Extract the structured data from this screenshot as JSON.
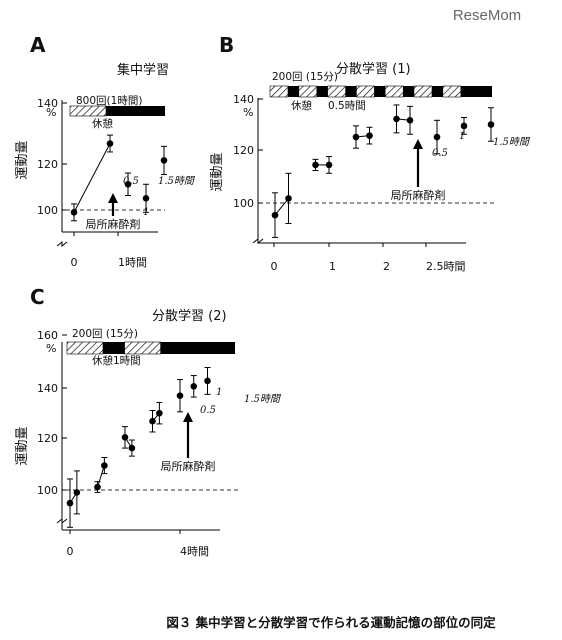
{
  "watermark": "ReseMom",
  "caption": "図３ 集中学習と分散学習で作られる運動記憶の部位の同定",
  "chart_data": [
    {
      "panel": "A",
      "type": "scatter",
      "title": "集中学習",
      "ylabel": "運動量",
      "yunit": "%",
      "yticks": [
        "100",
        "120",
        "140"
      ],
      "ylim": [
        93,
        140
      ],
      "xticks": [
        "0",
        "1時間"
      ],
      "bar_label": "800回(1時間)",
      "rest_label": "休憩",
      "arrow_label": "局所麻酔剤",
      "annotations": [
        "0.5",
        "1",
        "1.5時間"
      ],
      "points": [
        {
          "x": 0,
          "y": 100,
          "err": 3
        },
        {
          "x": 1,
          "y": 124.5,
          "err": 3
        },
        {
          "x": 1.5,
          "y": 110,
          "err": 4
        },
        {
          "x": 2,
          "y": 105,
          "err": 5
        },
        {
          "x": 2.5,
          "y": 118.5,
          "err": 5
        }
      ],
      "segments": [
        [
          0,
          1
        ]
      ],
      "reference_y": 100
    },
    {
      "panel": "B",
      "type": "scatter",
      "title": "分散学習 (1)",
      "ylabel": "運動量",
      "yunit": "%",
      "yticks": [
        "100",
        "120",
        "140"
      ],
      "ylim": [
        90,
        142
      ],
      "xticks": [
        "0",
        "1",
        "2",
        "2.5時間"
      ],
      "bar_label": "200回 (15分)",
      "rest_label": "休憩",
      "sub_label": "0.5時間",
      "arrow_label": "局所麻酔剤",
      "annotations": [
        "0.5",
        "1",
        "1.5時間"
      ],
      "points": [
        {
          "x": 0,
          "y": 100,
          "err": 8
        },
        {
          "x": 0.25,
          "y": 106,
          "err": 9
        },
        {
          "x": 0.75,
          "y": 118,
          "err": 2
        },
        {
          "x": 1,
          "y": 118,
          "err": 3
        },
        {
          "x": 1.5,
          "y": 128,
          "err": 4
        },
        {
          "x": 1.75,
          "y": 128.5,
          "err": 3
        },
        {
          "x": 2.25,
          "y": 134.5,
          "err": 5
        },
        {
          "x": 2.5,
          "y": 134,
          "err": 5
        },
        {
          "x": 3.0,
          "y": 128,
          "err": 6
        },
        {
          "x": 3.5,
          "y": 132,
          "err": 3
        },
        {
          "x": 4.0,
          "y": 132.5,
          "err": 6
        }
      ],
      "segments": [
        [
          0,
          1
        ],
        [
          2,
          3
        ],
        [
          4,
          5
        ],
        [
          6,
          7
        ]
      ],
      "reference_y": 100
    },
    {
      "panel": "C",
      "type": "scatter",
      "title": "分散学習 (2)",
      "ylabel": "運動量",
      "yunit": "%",
      "yticks": [
        "100",
        "120",
        "140",
        "160"
      ],
      "ylim": [
        90,
        160
      ],
      "xticks": [
        "0",
        "4時間"
      ],
      "bar_label": "200回 (15分)",
      "rest_label": "休憩",
      "sub_label": "1時間",
      "arrow_label": "局所麻酔剤",
      "annotations": [
        "0.5",
        "1",
        "1.5時間"
      ],
      "points": [
        {
          "x": 0,
          "y": 100,
          "err": 9
        },
        {
          "x": 0.25,
          "y": 104,
          "err": 8
        },
        {
          "x": 1.0,
          "y": 106,
          "err": 2
        },
        {
          "x": 1.25,
          "y": 114,
          "err": 3
        },
        {
          "x": 2.0,
          "y": 124.5,
          "err": 4
        },
        {
          "x": 2.25,
          "y": 120.5,
          "err": 3
        },
        {
          "x": 3.0,
          "y": 130.5,
          "err": 4
        },
        {
          "x": 3.25,
          "y": 133.5,
          "err": 4
        },
        {
          "x": 4.0,
          "y": 140,
          "err": 6
        },
        {
          "x": 4.5,
          "y": 143.5,
          "err": 4
        },
        {
          "x": 5.0,
          "y": 145.5,
          "err": 5
        }
      ],
      "segments": [
        [
          0,
          1
        ],
        [
          2,
          3
        ],
        [
          4,
          5
        ],
        [
          6,
          7
        ]
      ],
      "reference_y": 100
    }
  ]
}
